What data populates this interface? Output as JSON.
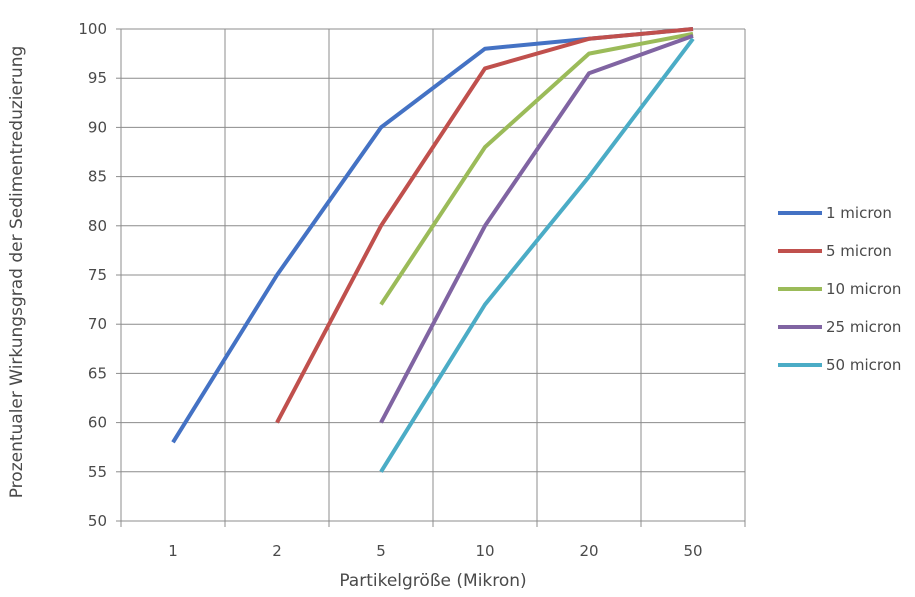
{
  "chart_data": {
    "type": "line",
    "title": "",
    "xlabel": "Partikelgröße (Mikron)",
    "ylabel": "Prozentualer Wirkungsgrad der Sedimentreduzierung",
    "categories": [
      "1",
      "2",
      "5",
      "10",
      "20",
      "50"
    ],
    "ylim": [
      50,
      100
    ],
    "yticks": [
      "50",
      "55",
      "60",
      "65",
      "70",
      "75",
      "80",
      "85",
      "90",
      "95",
      "100"
    ],
    "grid": true,
    "legend_position": "right",
    "series": [
      {
        "name": "1 micron",
        "color": "#4472C4",
        "values": [
          58,
          75,
          90,
          98,
          99,
          100
        ]
      },
      {
        "name": "5 micron",
        "color": "#C0504D",
        "values": [
          null,
          60,
          80,
          96,
          99,
          100
        ]
      },
      {
        "name": "10 micron",
        "color": "#9BBB59",
        "values": [
          null,
          null,
          72,
          88,
          97.5,
          99.5
        ]
      },
      {
        "name": "25 micron",
        "color": "#8064A2",
        "values": [
          null,
          null,
          60,
          80,
          95.5,
          99.3
        ]
      },
      {
        "name": "50 micron",
        "color": "#4BACC6",
        "values": [
          null,
          null,
          55,
          72,
          85,
          99
        ]
      }
    ]
  }
}
